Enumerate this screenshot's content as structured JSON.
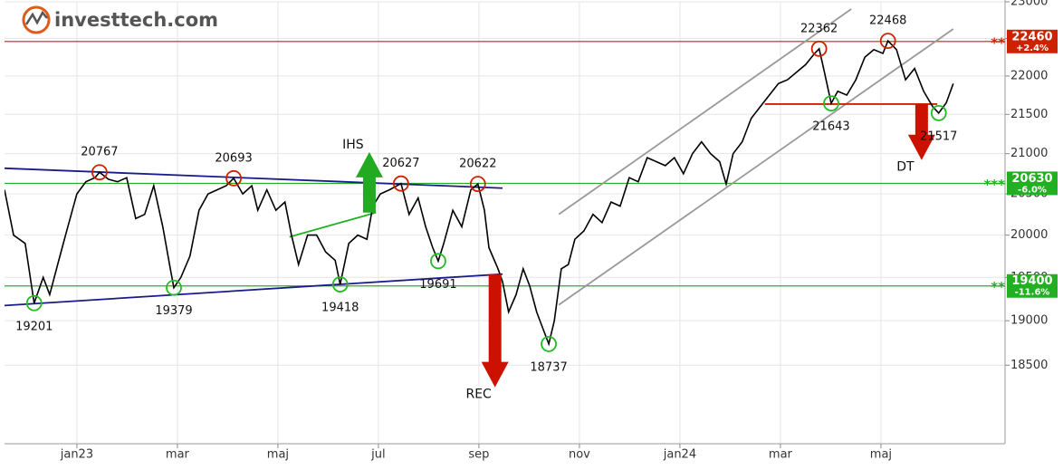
{
  "logo": "investtech.com",
  "chart_data": {
    "type": "line",
    "log_scale": true,
    "grid": true,
    "x": [
      -1.44,
      -1.26,
      -1.03,
      -0.85,
      -0.67,
      -0.54,
      -0.36,
      -0.18,
      0,
      0.18,
      0.36,
      0.45,
      0.63,
      0.81,
      0.99,
      1.17,
      1.35,
      1.53,
      1.71,
      1.86,
      1.93,
      2.07,
      2.25,
      2.43,
      2.61,
      2.79,
      2.97,
      3.12,
      3.3,
      3.48,
      3.6,
      3.78,
      3.96,
      4.14,
      4.27,
      4.41,
      4.59,
      4.77,
      4.95,
      5.14,
      5.24,
      5.41,
      5.59,
      5.77,
      5.89,
      6.04,
      6.22,
      6.45,
      6.61,
      6.79,
      6.94,
      7.08,
      7.19,
      7.3,
      7.48,
      7.66,
      7.84,
      7.98,
      8.11,
      8.2,
      8.38,
      8.47,
      8.59,
      8.74,
      8.88,
      9.01,
      9.15,
      9.28,
      9.39,
      9.5,
      9.64,
      9.78,
      9.91,
      10.09,
      10.27,
      10.45,
      10.63,
      10.81,
      10.99,
      11.17,
      11.35,
      11.53,
      11.71,
      11.89,
      12.07,
      12.25,
      12.43,
      12.61,
      12.79,
      12.92,
      13.06,
      13.24,
      13.42,
      13.6,
      13.78,
      13.96,
      14.14,
      14.32,
      14.5,
      14.68,
      14.77,
      14.86,
      15.01,
      15.14,
      15.32,
      15.5,
      15.68,
      15.86,
      16.04,
      16.14,
      16.31,
      16.49,
      16.67,
      16.85,
      17.03,
      17.15,
      17.3,
      17.44
    ],
    "series": [
      {
        "color": "#000000",
        "values": [
          20550,
          20000,
          19900,
          19201,
          19500,
          19300,
          19700,
          20100,
          20500,
          20650,
          20700,
          20767,
          20680,
          20650,
          20700,
          20200,
          20250,
          20600,
          20100,
          19600,
          19379,
          19500,
          19750,
          20300,
          20500,
          20550,
          20600,
          20693,
          20500,
          20600,
          20300,
          20550,
          20300,
          20400,
          20000,
          19650,
          20000,
          20000,
          19800,
          19700,
          19418,
          19900,
          20000,
          19950,
          20350,
          20500,
          20550,
          20627,
          20250,
          20450,
          20100,
          19850,
          19691,
          19900,
          20300,
          20100,
          20550,
          20622,
          20300,
          19850,
          19600,
          19450,
          19100,
          19300,
          19600,
          19400,
          19100,
          18900,
          18737,
          19000,
          19600,
          19650,
          19950,
          20050,
          20250,
          20150,
          20400,
          20350,
          20700,
          20650,
          20950,
          20900,
          20850,
          20950,
          20750,
          21000,
          21150,
          21000,
          20900,
          20620,
          21000,
          21150,
          21450,
          21600,
          21750,
          21900,
          21950,
          22050,
          22150,
          22300,
          22362,
          22100,
          21643,
          21800,
          21750,
          21950,
          22250,
          22350,
          22300,
          22468,
          22350,
          21950,
          22100,
          21800,
          21600,
          21517,
          21650,
          21900
        ]
      }
    ],
    "xlim": [
      -1.44,
      18.47
    ],
    "xticks": [
      {
        "value": 0,
        "label": "jan23"
      },
      {
        "value": 2,
        "label": "mar"
      },
      {
        "value": 4,
        "label": "maj"
      },
      {
        "value": 6,
        "label": "jul"
      },
      {
        "value": 8,
        "label": "sep"
      },
      {
        "value": 10,
        "label": "nov"
      },
      {
        "value": 12,
        "label": "jan24"
      },
      {
        "value": 14,
        "label": "mar"
      },
      {
        "value": 16,
        "label": "maj"
      }
    ],
    "ylim": [
      17650,
      23000
    ],
    "yticks": [
      18500,
      19000,
      19500,
      20000,
      20500,
      21000,
      21500,
      22000,
      22500,
      23000
    ],
    "markers": [
      {
        "kind": "top",
        "x": 0.45,
        "value": 20767
      },
      {
        "kind": "top",
        "x": 3.12,
        "value": 20693
      },
      {
        "kind": "top",
        "x": 6.45,
        "value": 20627
      },
      {
        "kind": "top",
        "x": 7.98,
        "value": 20622
      },
      {
        "kind": "top",
        "x": 14.77,
        "value": 22362
      },
      {
        "kind": "top",
        "x": 16.14,
        "value": 22468
      },
      {
        "kind": "bottom",
        "x": -0.85,
        "value": 19201
      },
      {
        "kind": "bottom",
        "x": 1.93,
        "value": 19379
      },
      {
        "kind": "bottom",
        "x": 5.24,
        "value": 19418
      },
      {
        "kind": "bottom",
        "x": 7.19,
        "value": 19691
      },
      {
        "kind": "bottom",
        "x": 9.39,
        "value": 18737
      },
      {
        "kind": "bottom",
        "x": 15.01,
        "value": 21643
      },
      {
        "kind": "bottom",
        "x": 17.15,
        "value": 21517
      }
    ],
    "trendlines": [
      {
        "color": "#1a1a8c",
        "x": [
          -1.44,
          8.47
        ],
        "y": [
          20817,
          20571
        ]
      },
      {
        "color": "#1a1a8c",
        "x": [
          -1.44,
          8.47
        ],
        "y": [
          19174,
          19538
        ]
      },
      {
        "color": "#22b022",
        "x": [
          4.23,
          5.95
        ],
        "y": [
          19978,
          20271
        ]
      },
      {
        "color": "#999999",
        "x": [
          9.59,
          15.41
        ],
        "y": [
          20251,
          22900
        ]
      },
      {
        "color": "#999999",
        "x": [
          9.59,
          17.44
        ],
        "y": [
          19182,
          22629
        ]
      },
      {
        "color": "#cc2200",
        "x": [
          13.69,
          17.12
        ],
        "y": [
          21633,
          21633
        ]
      }
    ],
    "levels": [
      {
        "value": 22460,
        "change": "+2.4%",
        "stars": "**",
        "color": "#cc2200"
      },
      {
        "value": 20630,
        "change": "-6.0%",
        "stars": "***",
        "color": "#22b022"
      },
      {
        "value": 19400,
        "change": "-11.6%",
        "stars": "**",
        "color": "#22b022"
      }
    ],
    "signals": [
      {
        "label": "IHS",
        "x": 5.82,
        "from": 20271,
        "to": 21021,
        "color": "#22aa22"
      },
      {
        "label": "REC",
        "x": 8.32,
        "from": 19538,
        "to": 18258,
        "color": "#cc1100"
      },
      {
        "label": "DT",
        "x": 16.81,
        "from": 21633,
        "to": 20920,
        "color": "#cc1100"
      }
    ]
  }
}
